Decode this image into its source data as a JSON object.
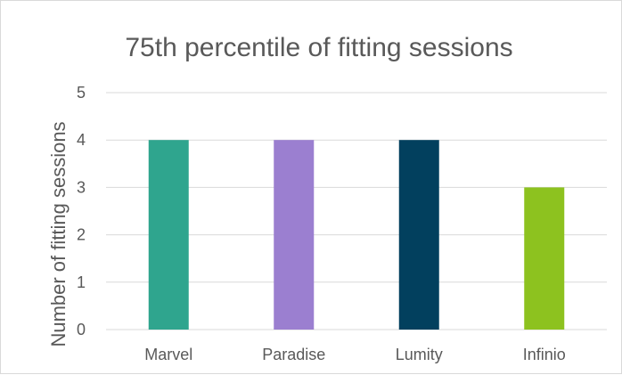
{
  "chart_data": {
    "type": "bar",
    "title": "75th percentile of fitting sessions",
    "xlabel": "",
    "ylabel": "Number of fitting sessions",
    "categories": [
      "Marvel",
      "Paradise",
      "Lumity",
      "Infinio"
    ],
    "values": [
      4,
      4,
      4,
      3
    ],
    "colors": [
      "#2fa58e",
      "#9b7fd0",
      "#02405e",
      "#8dc21f"
    ],
    "ylim": [
      0,
      5
    ],
    "yticks": [
      "0",
      "1",
      "2",
      "3",
      "4",
      "5"
    ],
    "grid": true,
    "gridline_color": "#d9d9d9",
    "legend": "none"
  }
}
